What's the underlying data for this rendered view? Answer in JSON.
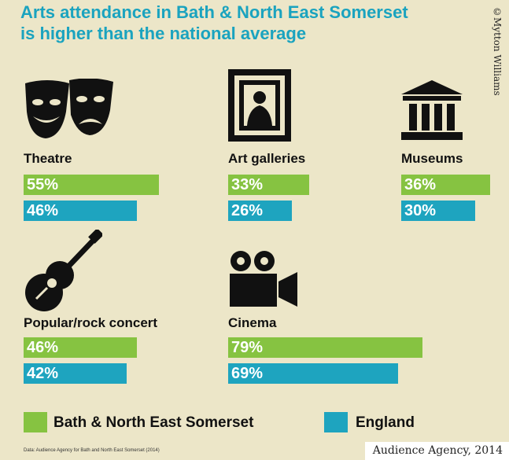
{
  "title_line1": "Arts attendance in Bath & North East Somerset",
  "title_line2": "is higher than the national average",
  "credit": "©Mytton Williams",
  "source_small": "Data: Audience Agency for Bath and North East Somerset (2014)",
  "source_box": "Audience Agency, 2014",
  "colors": {
    "local": "#86c341",
    "england": "#1ea4bf",
    "title": "#1aa3bf"
  },
  "legend": {
    "local": "Bath & North East Somerset",
    "england": "England"
  },
  "chart_data": {
    "type": "bar",
    "title": "Arts attendance in Bath & North East Somerset is higher than the national average",
    "categories": [
      "Theatre",
      "Art galleries",
      "Museums",
      "Popular/rock concert",
      "Cinema"
    ],
    "series": [
      {
        "name": "Bath & North East Somerset",
        "values": [
          55,
          33,
          36,
          46,
          79
        ]
      },
      {
        "name": "England",
        "values": [
          46,
          26,
          30,
          42,
          69
        ]
      }
    ],
    "value_labels": {
      "local": [
        "55%",
        "33%",
        "36%",
        "46%",
        "79%"
      ],
      "england": [
        "46%",
        "26%",
        "30%",
        "42%",
        "69%"
      ]
    },
    "unit": "%"
  },
  "icons": [
    "theatre-masks-icon",
    "picture-frame-icon",
    "museum-icon",
    "guitar-icon",
    "film-camera-icon"
  ]
}
